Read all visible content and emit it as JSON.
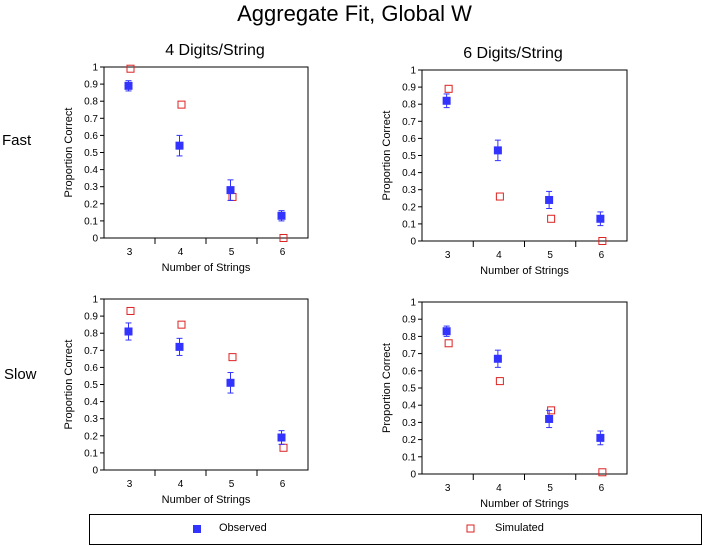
{
  "title": "Aggregate Fit, Global W",
  "column_titles": [
    "4 Digits/String",
    "6 Digits/String"
  ],
  "row_labels": [
    "Fast",
    "Slow"
  ],
  "legend": {
    "observed_label": "Observed",
    "simulated_label": "Simulated",
    "observed_color": "#3333ff",
    "simulated_color": "#dd2222"
  },
  "chart_data": [
    {
      "type": "scatter",
      "panel": "Fast / 4 Digits/String",
      "xlabel": "Number of Strings",
      "ylabel": "Proportion Correct",
      "xlim": [
        2.5,
        6.5
      ],
      "ylim": [
        0,
        1
      ],
      "x": [
        3,
        4,
        5,
        6
      ],
      "x_tick_labels": [
        "3",
        "4",
        "5",
        "6"
      ],
      "y_tick_labels": [
        "0",
        "0.1",
        "0.2",
        "0.3",
        "0.4",
        "0.5",
        "0.6",
        "0.7",
        "0.8",
        "0.9",
        "1"
      ],
      "series": [
        {
          "name": "Observed",
          "values": [
            0.89,
            0.54,
            0.28,
            0.13
          ],
          "error": [
            0.03,
            0.06,
            0.06,
            0.03
          ]
        },
        {
          "name": "Simulated",
          "values": [
            0.99,
            0.78,
            0.24,
            0.0
          ]
        }
      ]
    },
    {
      "type": "scatter",
      "panel": "Fast / 6 Digits/String",
      "xlabel": "Number of Strings",
      "ylabel": "Proportion Correct",
      "xlim": [
        2.5,
        6.5
      ],
      "ylim": [
        0,
        1
      ],
      "x": [
        3,
        4,
        5,
        6
      ],
      "x_tick_labels": [
        "3",
        "4",
        "5",
        "6"
      ],
      "y_tick_labels": [
        "0",
        "0.1",
        "0.2",
        "0.3",
        "0.4",
        "0.5",
        "0.6",
        "0.7",
        "0.8",
        "0.9",
        "1"
      ],
      "series": [
        {
          "name": "Observed",
          "values": [
            0.82,
            0.53,
            0.24,
            0.13
          ],
          "error": [
            0.04,
            0.06,
            0.05,
            0.04
          ]
        },
        {
          "name": "Simulated",
          "values": [
            0.89,
            0.26,
            0.13,
            0.0
          ]
        }
      ]
    },
    {
      "type": "scatter",
      "panel": "Slow / 4 Digits/String",
      "xlabel": "Number of Strings",
      "ylabel": "Proportion Correct",
      "xlim": [
        2.5,
        6.5
      ],
      "ylim": [
        0,
        1
      ],
      "x": [
        3,
        4,
        5,
        6
      ],
      "x_tick_labels": [
        "3",
        "4",
        "5",
        "6"
      ],
      "y_tick_labels": [
        "0",
        "0.1",
        "0.2",
        "0.3",
        "0.4",
        "0.5",
        "0.6",
        "0.7",
        "0.8",
        "0.9",
        "1"
      ],
      "series": [
        {
          "name": "Observed",
          "values": [
            0.81,
            0.72,
            0.51,
            0.19
          ],
          "error": [
            0.05,
            0.05,
            0.06,
            0.04
          ]
        },
        {
          "name": "Simulated",
          "values": [
            0.93,
            0.85,
            0.66,
            0.13
          ]
        }
      ]
    },
    {
      "type": "scatter",
      "panel": "Slow / 6 Digits/String",
      "xlabel": "Number of Strings",
      "ylabel": "Proportion Correct",
      "xlim": [
        2.5,
        6.5
      ],
      "ylim": [
        0,
        1
      ],
      "x": [
        3,
        4,
        5,
        6
      ],
      "x_tick_labels": [
        "3",
        "4",
        "5",
        "6"
      ],
      "y_tick_labels": [
        "0",
        "0.1",
        "0.2",
        "0.3",
        "0.4",
        "0.5",
        "0.6",
        "0.7",
        "0.8",
        "0.9",
        "1"
      ],
      "series": [
        {
          "name": "Observed",
          "values": [
            0.83,
            0.67,
            0.32,
            0.21
          ],
          "error": [
            0.03,
            0.05,
            0.05,
            0.04
          ]
        },
        {
          "name": "Simulated",
          "values": [
            0.76,
            0.54,
            0.37,
            0.01
          ]
        }
      ]
    }
  ]
}
